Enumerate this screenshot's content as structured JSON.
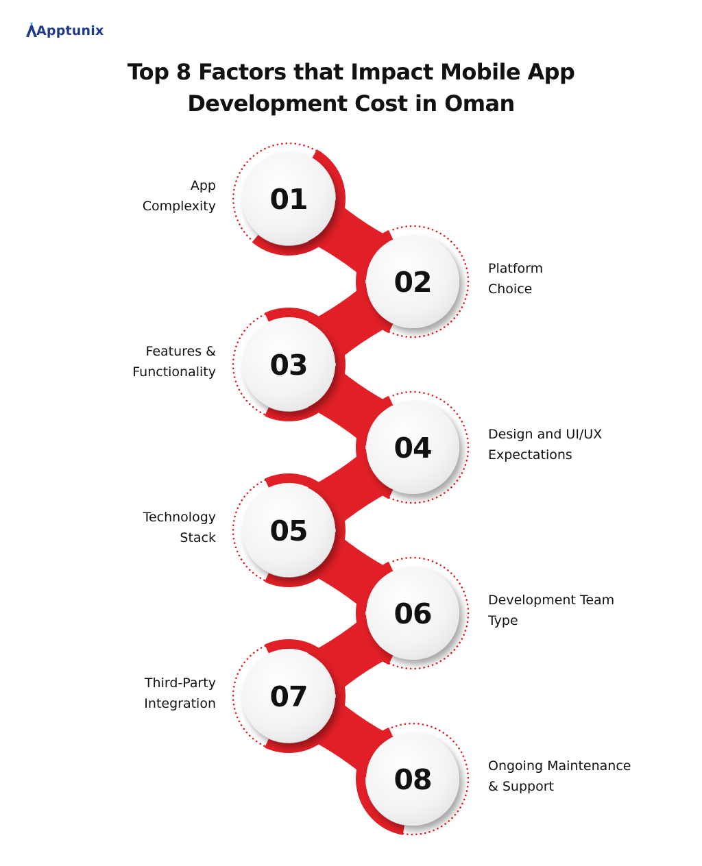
{
  "brand": {
    "name": "Apptunix",
    "color": "#1f3a8a"
  },
  "title": {
    "line1": "Top 8 Factors that Impact Mobile App",
    "line2": "Development Cost in Oman"
  },
  "colors": {
    "accent": "#e01f26",
    "text": "#111111",
    "circle": "#f2f2f2"
  },
  "steps": [
    {
      "number": "01",
      "label_line1": "App",
      "label_line2": "Complexity",
      "side": "left"
    },
    {
      "number": "02",
      "label_line1": "Platform",
      "label_line2": "Choice",
      "side": "right"
    },
    {
      "number": "03",
      "label_line1": "Features &",
      "label_line2": "Functionality",
      "side": "left"
    },
    {
      "number": "04",
      "label_line1": "Design and UI/UX",
      "label_line2": "Expectations",
      "side": "right"
    },
    {
      "number": "05",
      "label_line1": "Technology",
      "label_line2": "Stack",
      "side": "left"
    },
    {
      "number": "06",
      "label_line1": "Development Team",
      "label_line2": "Type",
      "side": "right"
    },
    {
      "number": "07",
      "label_line1": "Third-Party",
      "label_line2": "Integration",
      "side": "left"
    },
    {
      "number": "08",
      "label_line1": "Ongoing Maintenance",
      "label_line2": "& Support",
      "side": "right"
    }
  ]
}
